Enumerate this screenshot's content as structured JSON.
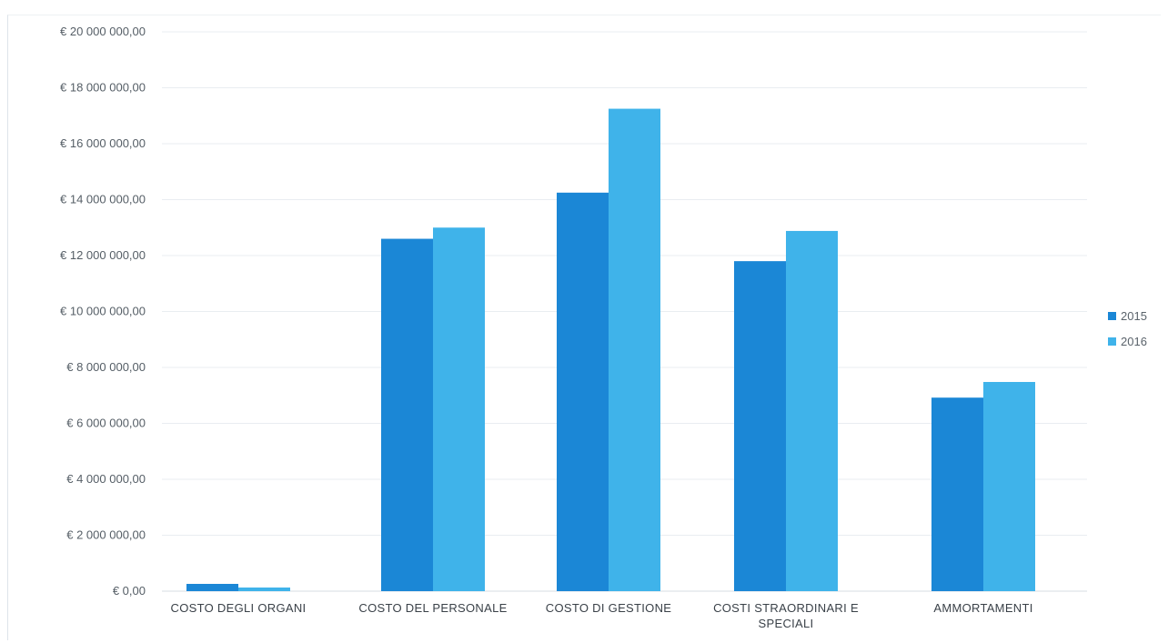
{
  "chart_data": {
    "type": "bar",
    "title": "",
    "xlabel": "",
    "ylabel": "",
    "categories": [
      [
        "COSTO DEGLI ORGANI"
      ],
      [
        "COSTO DEL PERSONALE"
      ],
      [
        "COSTO DI GESTIONE"
      ],
      [
        "COSTI STRAORDINARI E",
        "SPECIALI"
      ],
      [
        "AMMORTAMENTI"
      ]
    ],
    "series": [
      {
        "name": "2015",
        "color": "#1b87d6",
        "values": [
          260000,
          12600000,
          14250000,
          11800000,
          6920000
        ]
      },
      {
        "name": "2016",
        "color": "#3fb3ea",
        "values": [
          130000,
          13000000,
          17250000,
          12880000,
          7480000
        ]
      }
    ],
    "ylim": [
      0,
      20000000
    ],
    "yticks": [
      {
        "value": 0,
        "label": "€ 0,00"
      },
      {
        "value": 2000000,
        "label": "€ 2 000 000,00"
      },
      {
        "value": 4000000,
        "label": "€ 4 000 000,00"
      },
      {
        "value": 6000000,
        "label": "€ 6 000 000,00"
      },
      {
        "value": 8000000,
        "label": "€ 8 000 000,00"
      },
      {
        "value": 10000000,
        "label": "€ 10 000 000,00"
      },
      {
        "value": 12000000,
        "label": "€ 12 000 000,00"
      },
      {
        "value": 14000000,
        "label": "€ 14 000 000,00"
      },
      {
        "value": 16000000,
        "label": "€ 16 000 000,00"
      },
      {
        "value": 18000000,
        "label": "€ 18 000 000,00"
      },
      {
        "value": 20000000,
        "label": "€ 20 000 000,00"
      }
    ],
    "grid": true,
    "legend_position": "right"
  }
}
